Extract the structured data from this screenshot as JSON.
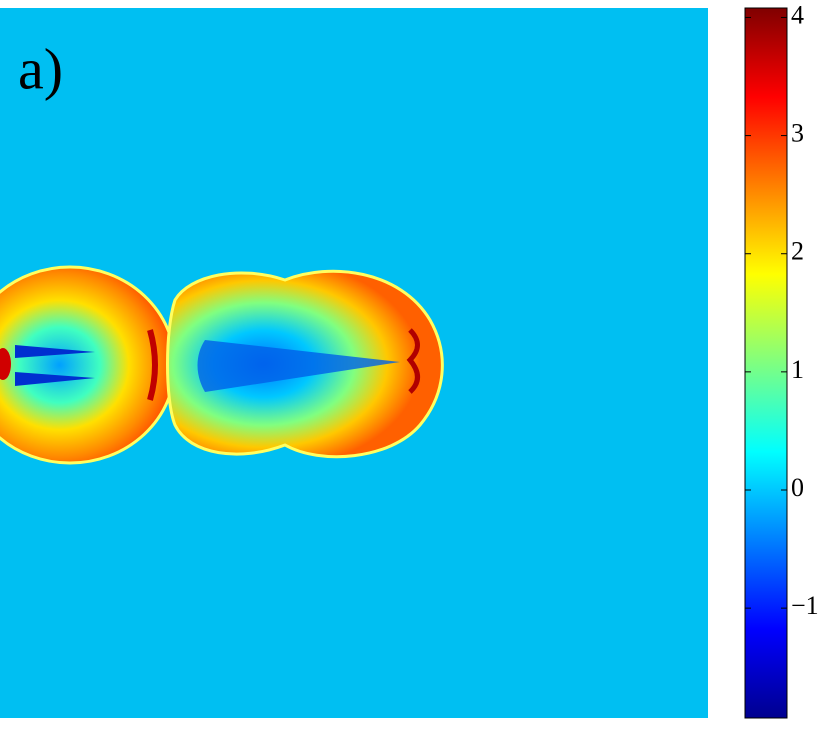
{
  "chart_data": {
    "type": "heatmap",
    "annotations": [
      "a)"
    ],
    "colorbar": {
      "colormap": "jet",
      "clim": [
        -1.93,
        4.08
      ],
      "ticks": [
        {
          "value": -1,
          "label": "−1"
        },
        0,
        1,
        2,
        3,
        4
      ]
    }
  }
}
